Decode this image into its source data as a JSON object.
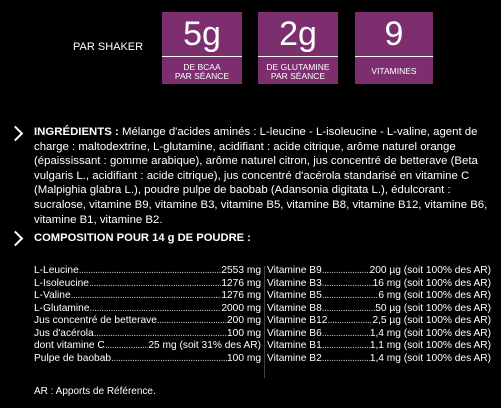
{
  "per_shaker_label": "PAR SHAKER",
  "stats": [
    {
      "value": "5g",
      "label_line1": "DE BCAA",
      "label_line2": "PAR SÉANCE"
    },
    {
      "value": "2g",
      "label_line1": "DE GLUTAMINE",
      "label_line2": "PAR SÉANCE"
    },
    {
      "value": "9",
      "label_line1": "VITAMINES",
      "label_line2": ""
    }
  ],
  "ingredients": {
    "heading": "INGRÉDIENTS :",
    "text": "Mélange d'acides aminés : L-leucine - L-isoleucine - L-valine, agent de charge : maltodextrine, L-glutamine, acidifiant : acide citrique, arôme naturel orange (épaississant : gomme arabique), arôme naturel citron, jus concentré de betterave (Beta vulgaris L., acidifiant : acide citrique), jus concentré d'acérola standarisé en vitamine C (Malpighia glabra L.), poudre pulpe de baobab (Adansonia digitata L.), édulcorant : sucralose, vitamine B9, vitamine B3, vitamine B5, vitamine B8, vitamine B12, vitamine B6, vitamine B1, vitamine B2."
  },
  "composition": {
    "title": "COMPOSITION POUR 14 g DE POUDRE :",
    "left": [
      {
        "name": "L-Leucine",
        "amount": "2553 mg"
      },
      {
        "name": "L-Isoleucine",
        "amount": "1276 mg"
      },
      {
        "name": "L-Valine",
        "amount": "1276 mg"
      },
      {
        "name": "L-Glutamine",
        "amount": "2000 mg"
      },
      {
        "name": "Jus concentré de betterave",
        "amount": "200 mg"
      },
      {
        "name": "Jus d'acérola",
        "amount": "100 mg"
      },
      {
        "name": "dont vitamine C",
        "amount": "25 mg (soit 31% des AR)"
      },
      {
        "name": "Pulpe de baobab",
        "amount": "100 mg"
      }
    ],
    "right": [
      {
        "name": "Vitamine B9",
        "amount": "200 µg (soit 100% des AR)"
      },
      {
        "name": "Vitamine B3",
        "amount": "16 mg (soit 100% des AR)"
      },
      {
        "name": "Vitamine B5",
        "amount": "6 mg (soit 100% des AR)"
      },
      {
        "name": "Vitamine B8",
        "amount": "50 µg (soit 100% des AR)"
      },
      {
        "name": "Vitamine B12",
        "amount": "2,5 µg (soit 100% des AR)"
      },
      {
        "name": "Vitamine B6",
        "amount": "1,4 mg (soit 100% des AR)"
      },
      {
        "name": "Vitamine B1",
        "amount": "1,1 mg (soit 100% des AR)"
      },
      {
        "name": "Vitamine B2",
        "amount": "1,4 mg (soit 100% des AR)"
      }
    ]
  },
  "footnote": "AR : Apports de Référence.",
  "colors": {
    "accent": "#7d2e6f",
    "background": "#000000",
    "text": "#ffffff"
  }
}
